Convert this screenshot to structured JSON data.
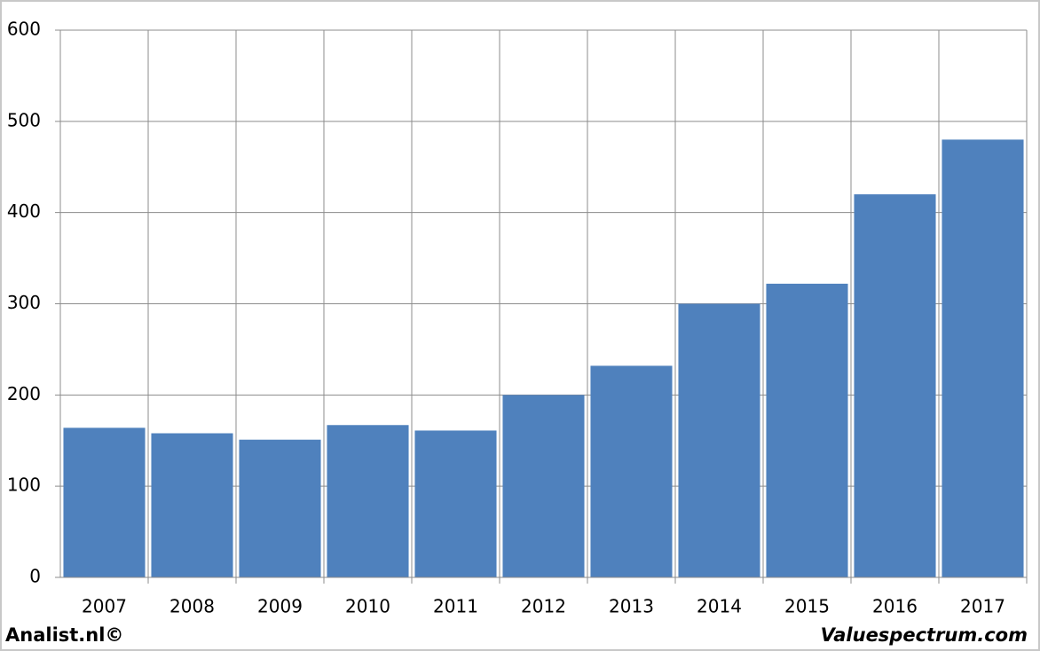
{
  "chart_data": {
    "type": "bar",
    "categories": [
      "2007",
      "2008",
      "2009",
      "2010",
      "2011",
      "2012",
      "2013",
      "2014",
      "2015",
      "2016",
      "2017"
    ],
    "values": [
      164,
      158,
      151,
      167,
      161,
      200,
      232,
      300,
      322,
      420,
      480
    ],
    "color": "#4f81bd",
    "ylim": [
      0,
      600
    ],
    "yticks": [
      0,
      100,
      200,
      300,
      400,
      500,
      600
    ],
    "grid": true,
    "footer_left": "Analist.nl©",
    "footer_right": "Valuespectrum.com"
  }
}
